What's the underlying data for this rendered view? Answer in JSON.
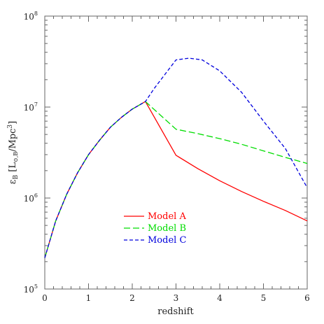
{
  "chart_data": {
    "type": "line",
    "xlabel": "redshift",
    "ylabel": "ε_B [L_⊙,B/Mpc³]",
    "ylabel_parts": {
      "symbol": "ε",
      "symbol_sub": "B",
      "unit_open": "[L",
      "unit_sub": "⊙,B",
      "unit_mid": "/Mpc",
      "unit_sup": "3",
      "unit_close": "]"
    },
    "xlim": [
      0,
      6
    ],
    "ylim": [
      100000,
      100000000
    ],
    "yscale": "log",
    "x_ticks": [
      "0",
      "1",
      "2",
      "3",
      "4",
      "5",
      "6"
    ],
    "y_ticks": [
      {
        "base": "10",
        "exp": "5"
      },
      {
        "base": "10",
        "exp": "6"
      },
      {
        "base": "10",
        "exp": "7"
      },
      {
        "base": "10",
        "exp": "8"
      }
    ],
    "legend_position": "lower-left",
    "series": [
      {
        "name": "Model A",
        "color": "#ff0000",
        "dash": "solid",
        "x": [
          0,
          0.25,
          0.5,
          0.75,
          1.0,
          1.25,
          1.5,
          1.75,
          2.0,
          2.3,
          3.0,
          3.5,
          4.0,
          4.5,
          5.0,
          5.5,
          6.0
        ],
        "y": [
          220000,
          560000,
          1100000,
          1900000,
          3000000,
          4300000,
          6000000,
          7700000,
          9500000,
          11500000,
          2950000,
          2100000,
          1550000,
          1180000,
          920000,
          730000,
          560000
        ]
      },
      {
        "name": "Model B",
        "color": "#00dd00",
        "dash": "longdash",
        "x": [
          0,
          0.25,
          0.5,
          0.75,
          1.0,
          1.25,
          1.5,
          1.75,
          2.0,
          2.3,
          3.0,
          3.5,
          4.0,
          4.5,
          5.0,
          5.5,
          6.0
        ],
        "y": [
          220000,
          560000,
          1100000,
          1900000,
          3000000,
          4300000,
          6000000,
          7700000,
          9500000,
          11500000,
          5700000,
          5100000,
          4500000,
          3900000,
          3300000,
          2800000,
          2400000
        ]
      },
      {
        "name": "Model C",
        "color": "#0000dd",
        "dash": "shortdash",
        "x": [
          0,
          0.25,
          0.5,
          0.75,
          1.0,
          1.25,
          1.5,
          1.75,
          2.0,
          2.3,
          2.5,
          3.0,
          3.3,
          3.6,
          4.0,
          4.5,
          5.0,
          5.5,
          6.0
        ],
        "y": [
          220000,
          560000,
          1100000,
          1900000,
          3000000,
          4300000,
          6000000,
          7700000,
          9500000,
          11500000,
          16000000,
          33000000,
          34500000,
          33000000,
          25000000,
          14500000,
          7000000,
          3500000,
          1300000
        ]
      }
    ]
  }
}
